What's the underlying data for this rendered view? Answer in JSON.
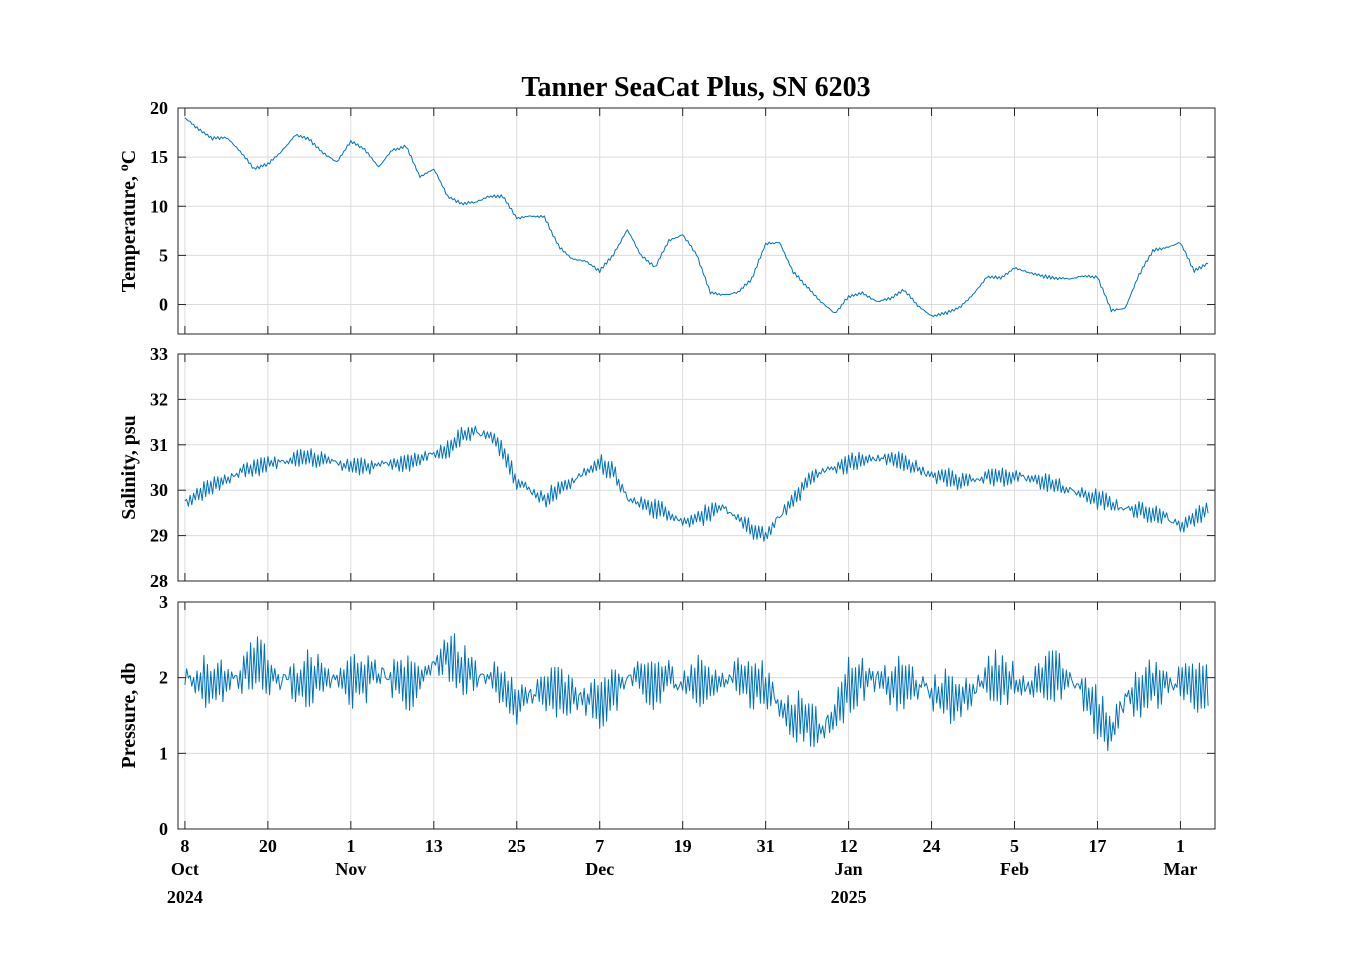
{
  "chart_data": {
    "type": "line",
    "title": "Tanner SeaCat Plus, SN 6203",
    "series_color": "#0072bd",
    "grid": true,
    "x_axis": {
      "start": "2024-10-07",
      "end": "2025-03-06",
      "ticks": [
        {
          "date": "2024-10-08",
          "day": "8",
          "month": "Oct",
          "year": "2024"
        },
        {
          "date": "2024-10-20",
          "day": "20",
          "month": "",
          "year": ""
        },
        {
          "date": "2024-11-01",
          "day": "1",
          "month": "Nov",
          "year": ""
        },
        {
          "date": "2024-11-13",
          "day": "13",
          "month": "",
          "year": ""
        },
        {
          "date": "2024-11-25",
          "day": "25",
          "month": "",
          "year": ""
        },
        {
          "date": "2024-12-07",
          "day": "7",
          "month": "Dec",
          "year": ""
        },
        {
          "date": "2024-12-19",
          "day": "19",
          "month": "",
          "year": ""
        },
        {
          "date": "2024-12-31",
          "day": "31",
          "month": "",
          "year": ""
        },
        {
          "date": "2025-01-12",
          "day": "12",
          "month": "Jan",
          "year": "2025"
        },
        {
          "date": "2025-01-24",
          "day": "24",
          "month": "",
          "year": ""
        },
        {
          "date": "2025-02-05",
          "day": "5",
          "month": "Feb",
          "year": ""
        },
        {
          "date": "2025-02-17",
          "day": "17",
          "month": "",
          "year": ""
        },
        {
          "date": "2025-03-01",
          "day": "1",
          "month": "Mar",
          "year": ""
        }
      ]
    },
    "panels": [
      {
        "ylabel": "Temperature, ",
        "ylabel_unit": "C",
        "ylabel_superscript": "o",
        "ylim": [
          -3,
          20
        ],
        "yticks": [
          0,
          5,
          10,
          15,
          20
        ],
        "noise": 0.25,
        "x": [
          "2024-10-08",
          "2024-10-10",
          "2024-10-12",
          "2024-10-14",
          "2024-10-16",
          "2024-10-18",
          "2024-10-20",
          "2024-10-22",
          "2024-10-24",
          "2024-10-26",
          "2024-10-28",
          "2024-10-30",
          "2024-11-01",
          "2024-11-03",
          "2024-11-05",
          "2024-11-07",
          "2024-11-09",
          "2024-11-11",
          "2024-11-13",
          "2024-11-15",
          "2024-11-17",
          "2024-11-19",
          "2024-11-21",
          "2024-11-23",
          "2024-11-25",
          "2024-11-27",
          "2024-11-29",
          "2024-12-01",
          "2024-12-03",
          "2024-12-05",
          "2024-12-07",
          "2024-12-09",
          "2024-12-11",
          "2024-12-13",
          "2024-12-15",
          "2024-12-17",
          "2024-12-19",
          "2024-12-21",
          "2024-12-23",
          "2024-12-25",
          "2024-12-27",
          "2024-12-29",
          "2024-12-31",
          "2025-01-02",
          "2025-01-04",
          "2025-01-06",
          "2025-01-08",
          "2025-01-10",
          "2025-01-12",
          "2025-01-14",
          "2025-01-16",
          "2025-01-18",
          "2025-01-20",
          "2025-01-22",
          "2025-01-24",
          "2025-01-26",
          "2025-01-28",
          "2025-01-30",
          "2025-02-01",
          "2025-02-03",
          "2025-02-05",
          "2025-02-07",
          "2025-02-09",
          "2025-02-11",
          "2025-02-13",
          "2025-02-15",
          "2025-02-17",
          "2025-02-19",
          "2025-02-21",
          "2025-02-23",
          "2025-02-25",
          "2025-02-27",
          "2025-03-01",
          "2025-03-03",
          "2025-03-05"
        ],
        "values": [
          19.0,
          17.8,
          16.9,
          17.0,
          15.6,
          13.8,
          14.3,
          15.6,
          17.3,
          16.8,
          15.4,
          14.5,
          16.6,
          15.8,
          14.0,
          15.7,
          16.1,
          13.0,
          13.8,
          11.0,
          10.3,
          10.4,
          11.0,
          11.0,
          8.8,
          9.0,
          8.9,
          6.0,
          4.6,
          4.4,
          3.4,
          5.1,
          7.6,
          5.0,
          3.8,
          6.5,
          7.1,
          5.1,
          1.2,
          1.0,
          1.2,
          2.6,
          6.2,
          6.3,
          3.3,
          1.8,
          0.3,
          -0.9,
          0.8,
          1.2,
          0.3,
          0.6,
          1.5,
          -0.1,
          -1.2,
          -0.9,
          -0.3,
          1.0,
          2.8,
          2.7,
          3.7,
          3.3,
          2.9,
          2.7,
          2.6,
          2.9,
          2.8,
          -0.6,
          -0.4,
          3.0,
          5.5,
          5.8,
          6.3,
          3.4,
          4.2
        ]
      },
      {
        "ylabel": "Salinity, psu",
        "ylim": [
          28,
          33
        ],
        "yticks": [
          28,
          29,
          30,
          31,
          32,
          33
        ],
        "noise": 0.3,
        "x": [
          "2024-10-08",
          "2024-10-10",
          "2024-10-12",
          "2024-10-14",
          "2024-10-16",
          "2024-10-18",
          "2024-10-20",
          "2024-10-22",
          "2024-10-24",
          "2024-10-26",
          "2024-10-28",
          "2024-10-30",
          "2024-11-01",
          "2024-11-03",
          "2024-11-05",
          "2024-11-07",
          "2024-11-09",
          "2024-11-11",
          "2024-11-13",
          "2024-11-15",
          "2024-11-17",
          "2024-11-19",
          "2024-11-21",
          "2024-11-23",
          "2024-11-25",
          "2024-11-27",
          "2024-11-29",
          "2024-12-01",
          "2024-12-03",
          "2024-12-05",
          "2024-12-07",
          "2024-12-09",
          "2024-12-11",
          "2024-12-13",
          "2024-12-15",
          "2024-12-17",
          "2024-12-19",
          "2024-12-21",
          "2024-12-23",
          "2024-12-25",
          "2024-12-27",
          "2024-12-29",
          "2024-12-31",
          "2025-01-02",
          "2025-01-04",
          "2025-01-06",
          "2025-01-08",
          "2025-01-10",
          "2025-01-12",
          "2025-01-14",
          "2025-01-16",
          "2025-01-18",
          "2025-01-20",
          "2025-01-22",
          "2025-01-24",
          "2025-01-26",
          "2025-01-28",
          "2025-01-30",
          "2025-02-01",
          "2025-02-03",
          "2025-02-05",
          "2025-02-07",
          "2025-02-09",
          "2025-02-11",
          "2025-02-13",
          "2025-02-15",
          "2025-02-17",
          "2025-02-19",
          "2025-02-21",
          "2025-02-23",
          "2025-02-25",
          "2025-02-27",
          "2025-03-01",
          "2025-03-03",
          "2025-03-05"
        ],
        "values": [
          29.7,
          29.9,
          30.1,
          30.2,
          30.4,
          30.5,
          30.6,
          30.6,
          30.7,
          30.7,
          30.7,
          30.6,
          30.5,
          30.5,
          30.6,
          30.6,
          30.6,
          30.7,
          30.8,
          30.9,
          31.2,
          31.3,
          31.2,
          30.9,
          30.2,
          30.0,
          29.8,
          30.0,
          30.2,
          30.4,
          30.6,
          30.4,
          29.8,
          29.7,
          29.6,
          29.5,
          29.3,
          29.4,
          29.5,
          29.6,
          29.4,
          29.1,
          29.0,
          29.4,
          29.8,
          30.2,
          30.4,
          30.5,
          30.6,
          30.65,
          30.7,
          30.7,
          30.6,
          30.5,
          30.3,
          30.3,
          30.2,
          30.25,
          30.3,
          30.3,
          30.3,
          30.25,
          30.2,
          30.1,
          30.0,
          29.9,
          29.8,
          29.7,
          29.6,
          29.55,
          29.5,
          29.4,
          29.2,
          29.4,
          29.6
        ]
      },
      {
        "ylabel": "Pressure, db",
        "ylim": [
          0,
          3
        ],
        "yticks": [
          0,
          1,
          2,
          3
        ],
        "noise": 0.5,
        "x": [
          "2024-10-08",
          "2024-10-10",
          "2024-10-12",
          "2024-10-14",
          "2024-10-16",
          "2024-10-18",
          "2024-10-20",
          "2024-10-22",
          "2024-10-24",
          "2024-10-26",
          "2024-10-28",
          "2024-10-30",
          "2024-11-01",
          "2024-11-03",
          "2024-11-05",
          "2024-11-07",
          "2024-11-09",
          "2024-11-11",
          "2024-11-13",
          "2024-11-15",
          "2024-11-17",
          "2024-11-19",
          "2024-11-21",
          "2024-11-23",
          "2024-11-25",
          "2024-11-27",
          "2024-11-29",
          "2024-12-01",
          "2024-12-03",
          "2024-12-05",
          "2024-12-07",
          "2024-12-09",
          "2024-12-11",
          "2024-12-13",
          "2024-12-15",
          "2024-12-17",
          "2024-12-19",
          "2024-12-21",
          "2024-12-23",
          "2024-12-25",
          "2024-12-27",
          "2024-12-29",
          "2024-12-31",
          "2025-01-02",
          "2025-01-04",
          "2025-01-06",
          "2025-01-08",
          "2025-01-10",
          "2025-01-12",
          "2025-01-14",
          "2025-01-16",
          "2025-01-18",
          "2025-01-20",
          "2025-01-22",
          "2025-01-24",
          "2025-01-26",
          "2025-01-28",
          "2025-01-30",
          "2025-02-01",
          "2025-02-03",
          "2025-02-05",
          "2025-02-07",
          "2025-02-09",
          "2025-02-11",
          "2025-02-13",
          "2025-02-15",
          "2025-02-17",
          "2025-02-19",
          "2025-02-21",
          "2025-02-23",
          "2025-02-25",
          "2025-02-27",
          "2025-03-01",
          "2025-03-03",
          "2025-03-05"
        ],
        "values": [
          2.0,
          1.95,
          1.9,
          1.95,
          2.0,
          2.2,
          2.1,
          2.0,
          1.95,
          2.0,
          2.0,
          2.05,
          1.95,
          2.0,
          2.05,
          1.95,
          1.9,
          2.0,
          2.2,
          2.3,
          2.1,
          2.05,
          2.0,
          1.9,
          1.6,
          1.8,
          1.8,
          1.8,
          1.75,
          1.7,
          1.7,
          1.8,
          2.0,
          1.95,
          1.9,
          2.0,
          1.95,
          1.95,
          1.9,
          2.0,
          2.0,
          1.95,
          1.9,
          1.6,
          1.5,
          1.45,
          1.3,
          1.5,
          1.9,
          2.0,
          1.95,
          1.9,
          1.9,
          1.9,
          1.8,
          1.75,
          1.75,
          1.8,
          2.0,
          2.0,
          1.95,
          1.9,
          1.95,
          2.0,
          2.0,
          1.8,
          1.5,
          1.3,
          1.7,
          1.8,
          1.9,
          1.95,
          1.95,
          1.9,
          1.95
        ]
      }
    ]
  }
}
